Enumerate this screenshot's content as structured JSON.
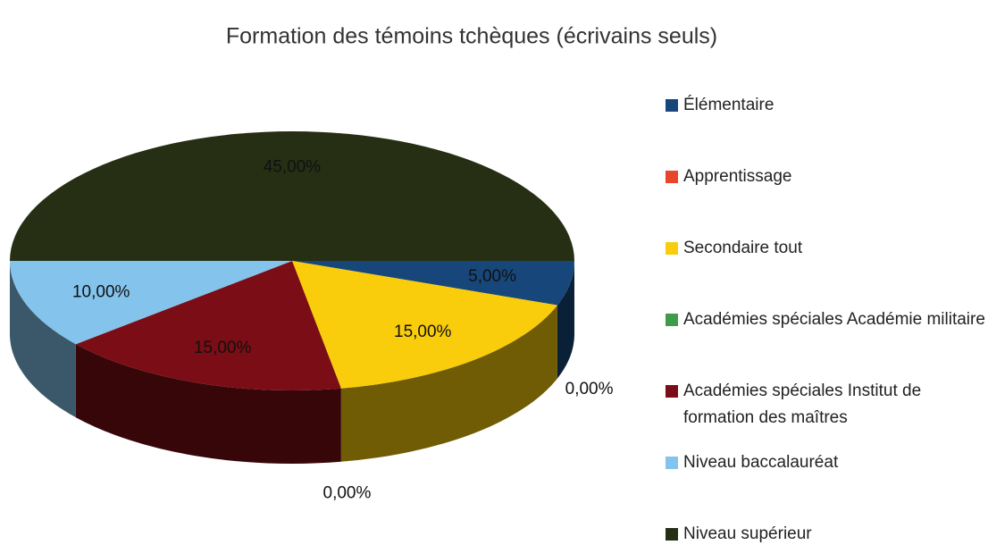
{
  "chart_data": {
    "type": "pie3d",
    "title": "Formation des témoins tchèques (écrivains seuls)",
    "categories": [
      "Élémentaire",
      "Apprentissage",
      "Secondaire  tout",
      "Académies spéciales Académie militaire",
      "Académies spéciales Institut de formation des maîtres",
      "Niveau baccalauréat",
      "Niveau supérieur"
    ],
    "values": [
      5,
      0,
      15,
      0,
      15,
      10,
      45
    ],
    "value_labels": [
      "5,00%",
      "0,00%",
      "15,00%",
      "0,00%",
      "15,00%",
      "10,00%",
      "45,00%"
    ],
    "colors": [
      "#17477a",
      "#e8452a",
      "#f9cd0b",
      "#3e9c47",
      "#7a0d15",
      "#84c3eb",
      "#262e13"
    ],
    "legend": "right"
  }
}
